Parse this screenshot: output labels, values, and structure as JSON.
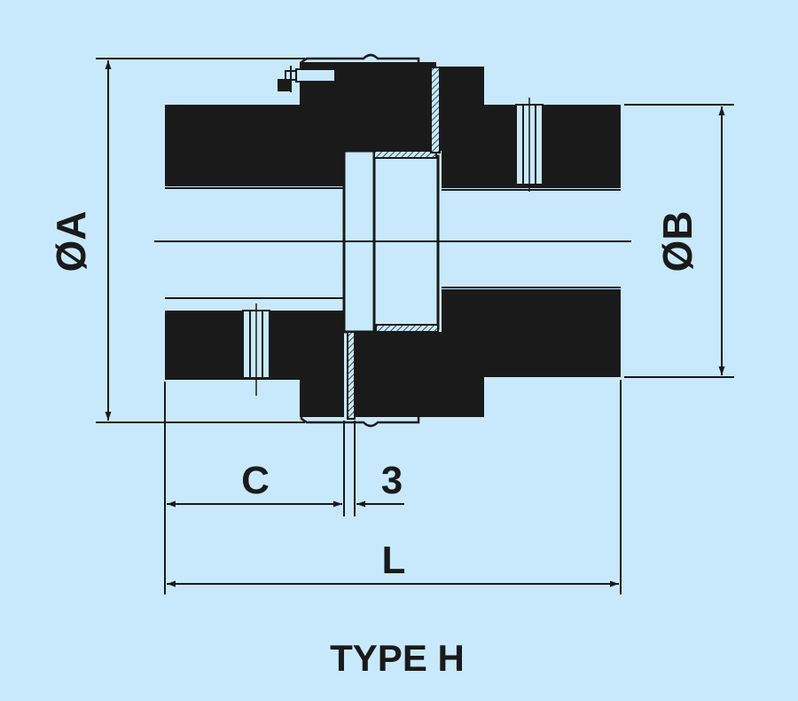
{
  "diagram": {
    "title": "TYPE H",
    "labels": {
      "dia_a": "ØA",
      "dia_b": "ØB",
      "c": "C",
      "gap": "3",
      "l": "L"
    },
    "colors": {
      "background": "#c8e9fb",
      "ink": "#1a1a1a"
    }
  }
}
